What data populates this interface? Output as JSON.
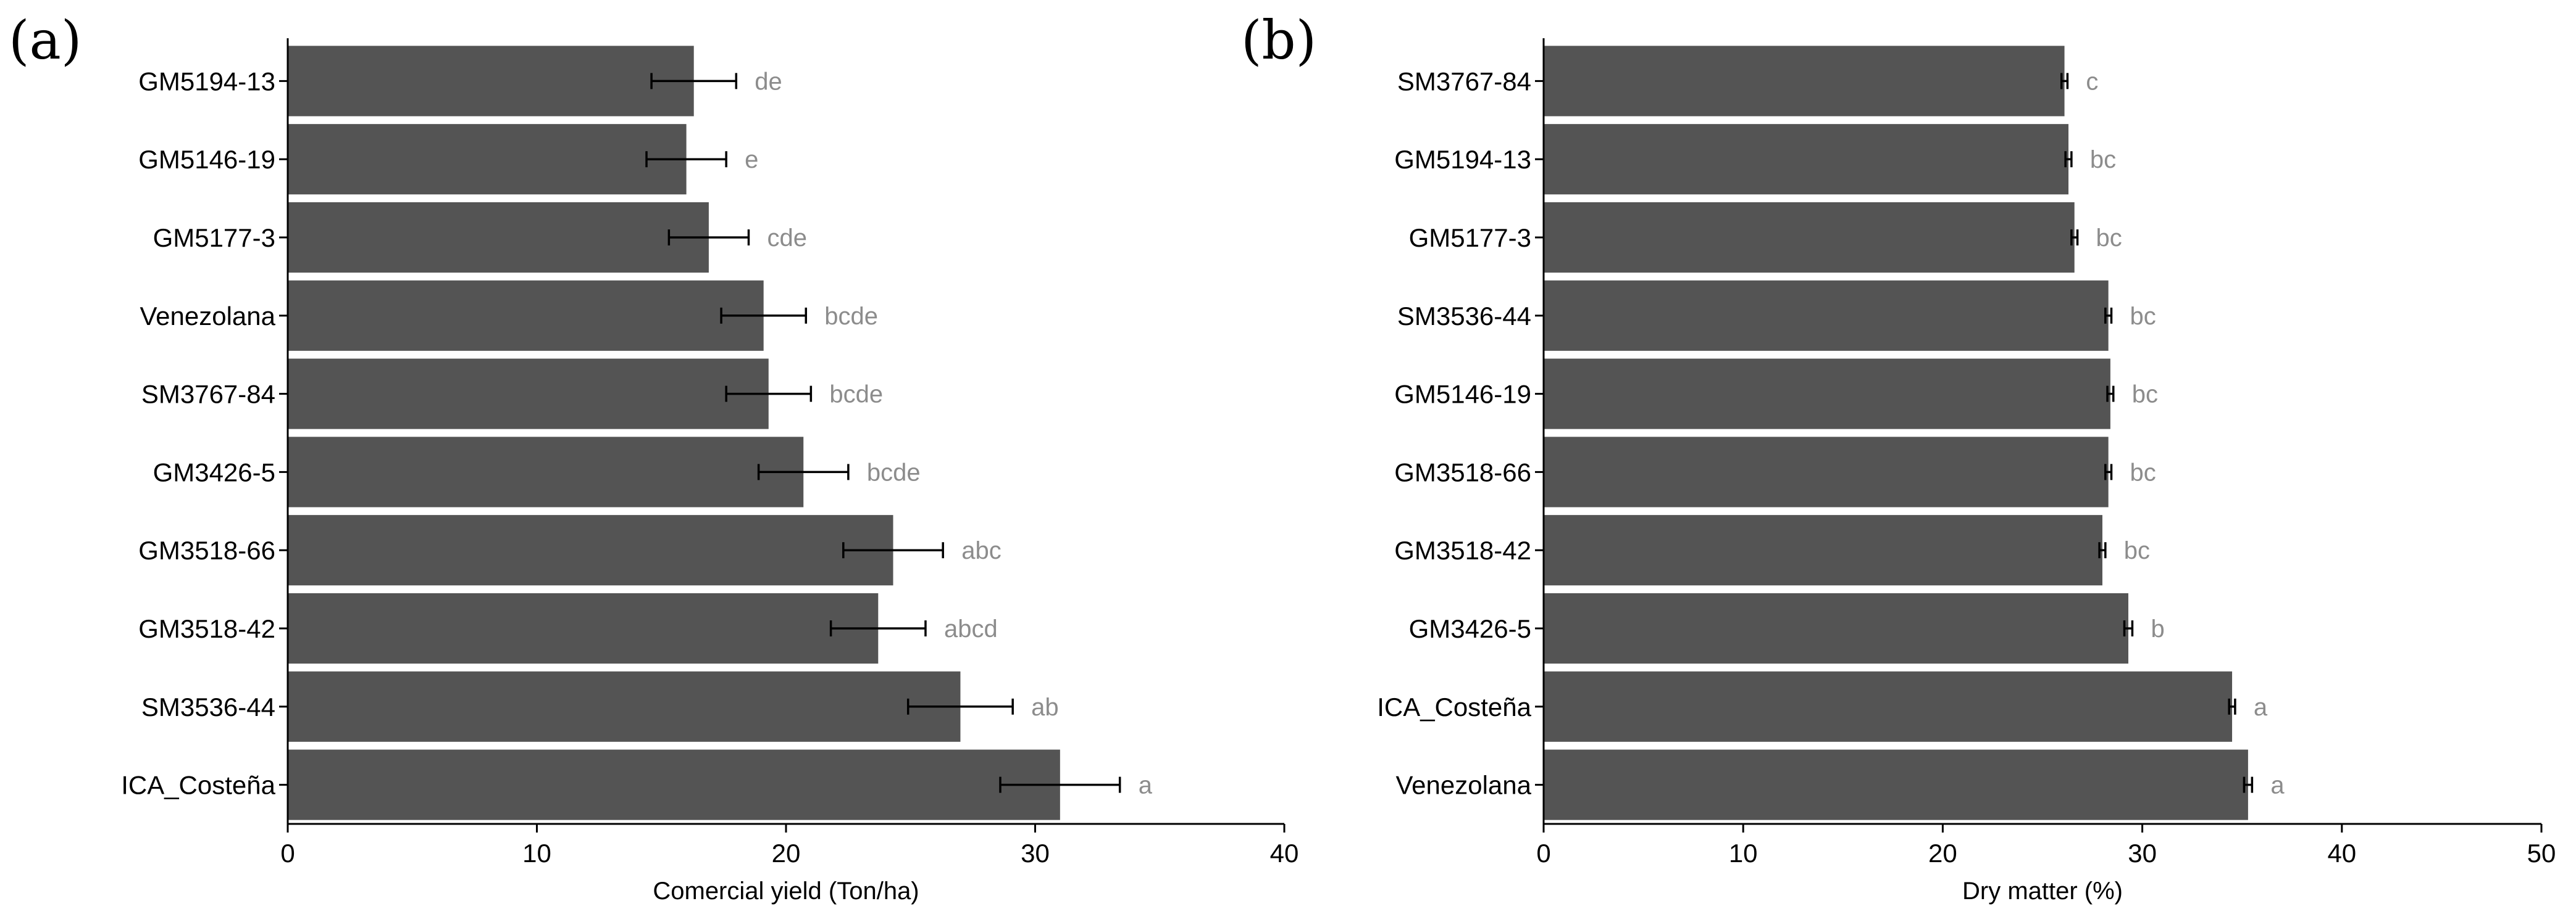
{
  "chart_data": [
    {
      "type": "bar",
      "orientation": "horizontal",
      "panel_label": "(a)",
      "xlabel": "Comercial yield (Ton/ha)",
      "xlim": [
        0,
        40
      ],
      "xticks": [
        "0",
        "10",
        "20",
        "30",
        "40"
      ],
      "categories": [
        "GM5194-13",
        "GM5146-19",
        "GM5177-3",
        "Venezolana",
        "SM3767-84",
        "GM3426-5",
        "GM3518-66",
        "GM3518-42",
        "SM3536-44",
        "ICA_Costeña"
      ],
      "values": [
        16.3,
        16.0,
        16.9,
        19.1,
        19.3,
        20.7,
        24.3,
        23.7,
        27.0,
        31.0
      ],
      "error": [
        1.7,
        1.6,
        1.6,
        1.7,
        1.7,
        1.8,
        2.0,
        1.9,
        2.1,
        2.4
      ],
      "significance": [
        "de",
        "e",
        "cde",
        "bcde",
        "bcde",
        "bcde",
        "abc",
        "abcd",
        "ab",
        "a"
      ],
      "bar_color": "#545454"
    },
    {
      "type": "bar",
      "orientation": "horizontal",
      "panel_label": "(b)",
      "xlabel": "Dry matter (%)",
      "xlim": [
        0,
        50
      ],
      "xticks": [
        "0",
        "10",
        "20",
        "30",
        "40",
        "50"
      ],
      "categories": [
        "SM3767-84",
        "GM5194-13",
        "GM5177-3",
        "SM3536-44",
        "GM5146-19",
        "GM3518-66",
        "GM3518-42",
        "GM3426-5",
        "ICA_Costeña",
        "Venezolana"
      ],
      "values": [
        26.1,
        26.3,
        26.6,
        28.3,
        28.4,
        28.3,
        28.0,
        29.3,
        34.5,
        35.3
      ],
      "error": [
        0.15,
        0.15,
        0.15,
        0.15,
        0.15,
        0.15,
        0.15,
        0.2,
        0.15,
        0.2
      ],
      "significance": [
        "c",
        "bc",
        "bc",
        "bc",
        "bc",
        "bc",
        "bc",
        "b",
        "a",
        "a"
      ],
      "bar_color": "#545454"
    }
  ]
}
